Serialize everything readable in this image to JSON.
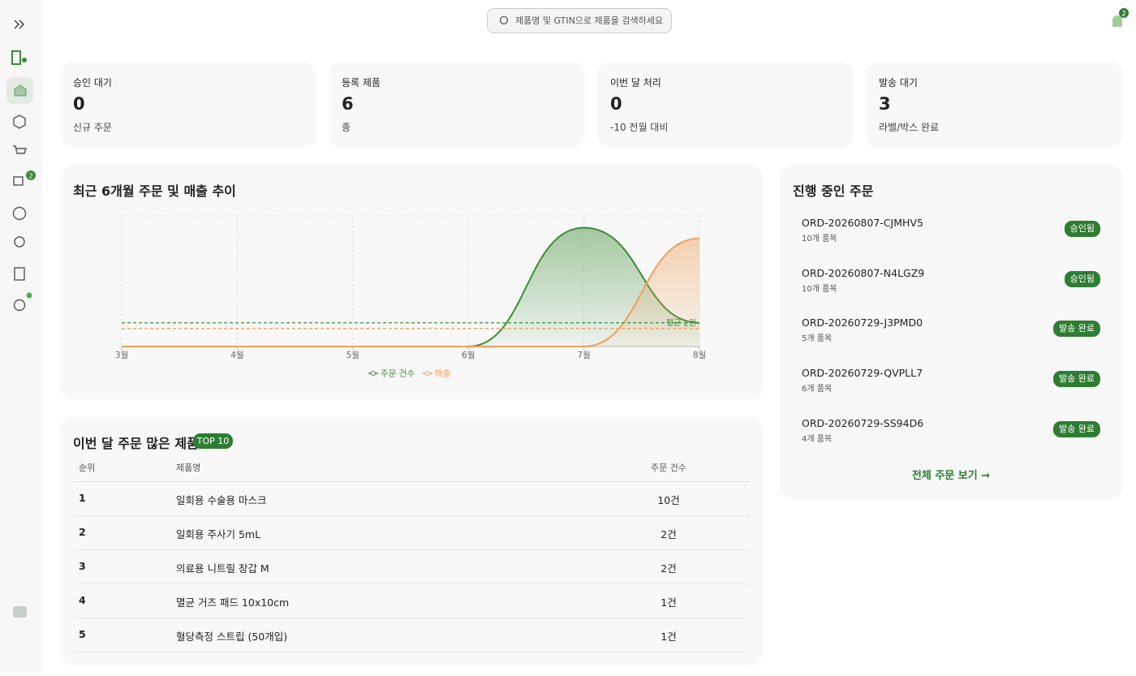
{
  "search": {
    "placeholder": "제품명 및 GTIN으로 제품을 검색하세요"
  },
  "notifications": {
    "count": 2
  },
  "sidebar": {
    "shipping_badge": 2
  },
  "stats": [
    {
      "label": "승인 대기",
      "value": 0,
      "note": "신규 주문"
    },
    {
      "label": "등록 제품",
      "value": 6,
      "note": "종"
    },
    {
      "label": "이번 달 처리",
      "value": 0,
      "note": "-10 전월 대비"
    },
    {
      "label": "발송 대기",
      "value": 3,
      "note": "라벨/박스 완료"
    }
  ],
  "chart_data": {
    "type": "line",
    "title": "최근 6개월 주문 및 매출 추이",
    "categories": [
      "3월",
      "4월",
      "5월",
      "6월",
      "7월",
      "8월"
    ],
    "series": [
      {
        "name": "주문 건수",
        "color": "#3d8b37",
        "values": [
          0,
          0,
          0,
          0,
          10,
          2
        ]
      },
      {
        "name": "매출",
        "color": "#f0a05a",
        "values": [
          0,
          0,
          0,
          0,
          0,
          6
        ],
        "axis": "y2"
      }
    ],
    "ylim": [
      0,
      11
    ],
    "y2lim": [
      0,
      7.25
    ],
    "reference_lines": [
      {
        "value": 2,
        "label": "평균 2건",
        "color": "#3d8b37"
      },
      {
        "value": 1,
        "axis": "y2",
        "color": "#f0a05a"
      }
    ],
    "grid": true
  },
  "recent_orders": {
    "title": "진행 중인 주문",
    "items": [
      {
        "id": "ORD-20260807-CJMHV5",
        "count": "10개 품목",
        "status": "승인됨"
      },
      {
        "id": "ORD-20260807-N4LGZ9",
        "count": "10개 품목",
        "status": "승인됨"
      },
      {
        "id": "ORD-20260729-J3PMD0",
        "count": "5개 품목",
        "status": "발송 완료"
      },
      {
        "id": "ORD-20260729-QVPLL7",
        "count": "6개 품목",
        "status": "발송 완료"
      },
      {
        "id": "ORD-20260729-SS94D6",
        "count": "4개 품목",
        "status": "발송 완료"
      }
    ],
    "link": "전체 주문 보기 →"
  },
  "top_products": {
    "title": "이번 달 주문 많은 제품",
    "badge": "TOP 10",
    "columns": [
      "순위",
      "제품명",
      "주문 건수"
    ],
    "rows": [
      [
        1,
        "일회용 수술용 마스크",
        "10건"
      ],
      [
        2,
        "일회용 주사기 5mL",
        "2건"
      ],
      [
        3,
        "의료용 니트릴 장갑 M",
        "2건"
      ],
      [
        4,
        "멸균 거즈 패드 10x10cm",
        "1건"
      ],
      [
        5,
        "혈당측정 스트립 (50개입)",
        "1건"
      ]
    ]
  }
}
